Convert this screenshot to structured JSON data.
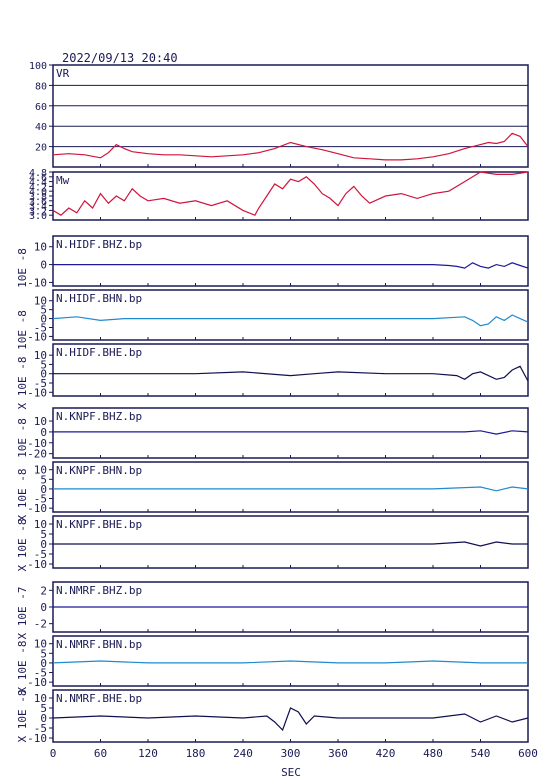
{
  "header": {
    "timestamp": "2022/09/13 20:40"
  },
  "colors": {
    "frame": "#1a1a55",
    "vr_line": "#d0143c",
    "mw_line": "#d0143c",
    "bhz": "#1a1a9a",
    "bhn": "#1e8ad0",
    "bhe": "#101050",
    "grid": "#1a1a55"
  },
  "chart_data": [
    {
      "type": "line",
      "name": "vr",
      "panel_label": "VR",
      "ylim": [
        0,
        100
      ],
      "yticks": [
        20,
        40,
        60,
        80,
        100
      ],
      "grid": true,
      "x": [
        0,
        20,
        40,
        60,
        70,
        80,
        90,
        100,
        120,
        140,
        160,
        180,
        200,
        220,
        240,
        260,
        280,
        300,
        320,
        340,
        360,
        380,
        400,
        420,
        440,
        460,
        480,
        500,
        520,
        540,
        550,
        560,
        570,
        580,
        590,
        600
      ],
      "values": [
        12,
        13,
        12,
        9,
        14,
        22,
        18,
        15,
        13,
        12,
        12,
        11,
        10,
        11,
        12,
        14,
        18,
        24,
        20,
        17,
        13,
        9,
        8,
        7,
        7,
        8,
        10,
        13,
        18,
        22,
        24,
        23,
        25,
        33,
        30,
        20
      ]
    },
    {
      "type": "line",
      "name": "mw",
      "panel_label": "Mw",
      "ylim": [
        2.8,
        4.8
      ],
      "yticks": [
        3.0,
        3.2,
        3.4,
        3.6,
        3.8,
        4.0,
        4.2,
        4.4,
        4.6,
        4.8
      ],
      "ytick_labels": [
        "3.0",
        "3.2",
        "3.4",
        "3.6",
        "3.8",
        "4.0",
        "4.2",
        "4.4",
        "4.6",
        "4.8"
      ],
      "x": [
        0,
        10,
        20,
        30,
        40,
        50,
        60,
        70,
        80,
        90,
        100,
        110,
        120,
        140,
        160,
        180,
        200,
        220,
        240,
        255,
        260,
        270,
        280,
        290,
        300,
        310,
        320,
        330,
        340,
        350,
        360,
        370,
        380,
        390,
        400,
        420,
        440,
        460,
        480,
        500,
        520,
        540,
        560,
        580,
        600
      ],
      "values": [
        3.2,
        3.0,
        3.3,
        3.1,
        3.6,
        3.3,
        3.9,
        3.5,
        3.8,
        3.6,
        4.1,
        3.8,
        3.6,
        3.7,
        3.5,
        3.6,
        3.4,
        3.6,
        3.2,
        3.0,
        3.3,
        3.8,
        4.3,
        4.1,
        4.5,
        4.4,
        4.6,
        4.3,
        3.9,
        3.7,
        3.4,
        3.9,
        4.2,
        3.8,
        3.5,
        3.8,
        3.9,
        3.7,
        3.9,
        4.0,
        4.4,
        4.8,
        4.7,
        4.7,
        4.8
      ]
    },
    {
      "type": "line",
      "name": "N.HIDF.BHZ.bp",
      "panel_label": "N.HIDF.BHZ.bp",
      "scale": "10E -8",
      "ylim": [
        -12,
        16
      ],
      "yticks": [
        -10,
        0,
        10
      ],
      "color_key": "bhz",
      "x": [
        0,
        60,
        120,
        180,
        240,
        300,
        360,
        420,
        480,
        500,
        510,
        520,
        530,
        540,
        550,
        560,
        570,
        580,
        590,
        600
      ],
      "values": [
        0,
        0,
        0,
        0,
        0,
        0,
        0,
        0,
        0,
        -0.5,
        -1,
        -2,
        1,
        -1,
        -2,
        0,
        -1,
        1,
        -0.5,
        -2
      ]
    },
    {
      "type": "line",
      "name": "N.HIDF.BHN.bp",
      "panel_label": "N.HIDF.BHN.bp",
      "scale": "10E -8",
      "ylim": [
        -12,
        16
      ],
      "yticks": [
        -10,
        -5,
        0,
        5,
        10
      ],
      "color_key": "bhn",
      "x": [
        0,
        30,
        60,
        90,
        120,
        180,
        240,
        300,
        360,
        420,
        480,
        520,
        530,
        540,
        550,
        560,
        570,
        580,
        590,
        600
      ],
      "values": [
        0,
        1,
        -1,
        0,
        0,
        0,
        0,
        0,
        0,
        0,
        0,
        1,
        -1,
        -4,
        -3,
        1,
        -1,
        2,
        0,
        -2
      ]
    },
    {
      "type": "line",
      "name": "N.HIDF.BHE.bp",
      "panel_label": "N.HIDF.BHE.bp",
      "scale": "X 10E -8",
      "ylim": [
        -12,
        16
      ],
      "yticks": [
        -10,
        -5,
        0,
        5,
        10
      ],
      "color_key": "bhe",
      "x": [
        0,
        60,
        120,
        180,
        240,
        300,
        330,
        360,
        420,
        480,
        510,
        520,
        530,
        540,
        560,
        570,
        580,
        590,
        600
      ],
      "values": [
        0,
        0,
        0,
        0,
        1,
        -1,
        0,
        1,
        0,
        0,
        -1,
        -3,
        0,
        1,
        -3,
        -2,
        2,
        4,
        -4
      ]
    },
    {
      "type": "line",
      "name": "N.KNPF.BHZ.bp",
      "panel_label": "N.KNPF.BHZ.bp",
      "scale": "10E -8",
      "ylim": [
        -24,
        22
      ],
      "yticks": [
        -20,
        -10,
        0,
        10
      ],
      "color_key": "bhz",
      "x": [
        0,
        60,
        120,
        180,
        240,
        300,
        360,
        420,
        480,
        520,
        540,
        560,
        580,
        600
      ],
      "values": [
        0,
        0,
        0,
        0,
        0,
        0,
        0,
        0,
        0,
        0,
        1,
        -2,
        1,
        0
      ]
    },
    {
      "type": "line",
      "name": "N.KNPF.BHN.bp",
      "panel_label": "N.KNPF.BHN.bp",
      "scale": "X 10E -8",
      "ylim": [
        -12,
        14
      ],
      "yticks": [
        -10,
        -5,
        0,
        5,
        10
      ],
      "color_key": "bhn",
      "x": [
        0,
        60,
        120,
        180,
        240,
        300,
        360,
        420,
        480,
        540,
        560,
        580,
        600
      ],
      "values": [
        0,
        0,
        0,
        0,
        0,
        0,
        0,
        0,
        0,
        1,
        -1,
        1,
        0
      ]
    },
    {
      "type": "line",
      "name": "N.KNPF.BHE.bp",
      "panel_label": "N.KNPF.BHE.bp",
      "scale": "X 10E -8",
      "ylim": [
        -12,
        14
      ],
      "yticks": [
        -10,
        -5,
        0,
        5,
        10
      ],
      "color_key": "bhe",
      "x": [
        0,
        60,
        120,
        180,
        240,
        300,
        360,
        420,
        480,
        520,
        540,
        560,
        580,
        600
      ],
      "values": [
        0,
        0,
        0,
        0,
        0,
        0,
        0,
        0,
        0,
        1,
        -1,
        1,
        0,
        0
      ]
    },
    {
      "type": "line",
      "name": "N.NMRF.BHZ.bp",
      "panel_label": "N.NMRF.BHZ.bp",
      "scale": "X 10E -7",
      "ylim": [
        -3,
        3
      ],
      "yticks": [
        -2,
        0,
        2
      ],
      "color_key": "bhz",
      "x": [
        0,
        60,
        120,
        180,
        240,
        300,
        360,
        420,
        480,
        540,
        600
      ],
      "values": [
        0,
        0,
        0,
        0,
        0,
        0,
        0,
        0,
        0,
        0,
        0
      ]
    },
    {
      "type": "line",
      "name": "N.NMRF.BHN.bp",
      "panel_label": "N.NMRF.BHN.bp",
      "scale": "X 10E -8",
      "ylim": [
        -12,
        14
      ],
      "yticks": [
        -10,
        -5,
        0,
        5,
        10
      ],
      "color_key": "bhn",
      "x": [
        0,
        60,
        120,
        180,
        240,
        300,
        360,
        420,
        480,
        540,
        600
      ],
      "values": [
        0,
        1,
        0,
        0,
        0,
        1,
        0,
        0,
        1,
        0,
        0
      ]
    },
    {
      "type": "line",
      "name": "N.NMRF.BHE.bp",
      "panel_label": "N.NMRF.BHE.bp",
      "scale": "X 10E -8",
      "ylim": [
        -12,
        14
      ],
      "yticks": [
        -10,
        -5,
        0,
        5,
        10
      ],
      "color_key": "bhe",
      "x": [
        0,
        60,
        120,
        180,
        240,
        270,
        280,
        290,
        300,
        310,
        320,
        330,
        360,
        420,
        480,
        520,
        540,
        560,
        580,
        600
      ],
      "values": [
        0,
        1,
        0,
        1,
        0,
        1,
        -2,
        -6,
        5,
        3,
        -3,
        1,
        0,
        0,
        0,
        2,
        -2,
        1,
        -2,
        0
      ]
    }
  ],
  "x_axis": {
    "label": "SEC",
    "ticks": [
      0,
      60,
      120,
      180,
      240,
      300,
      360,
      420,
      480,
      540,
      600
    ],
    "range": [
      0,
      600
    ]
  }
}
